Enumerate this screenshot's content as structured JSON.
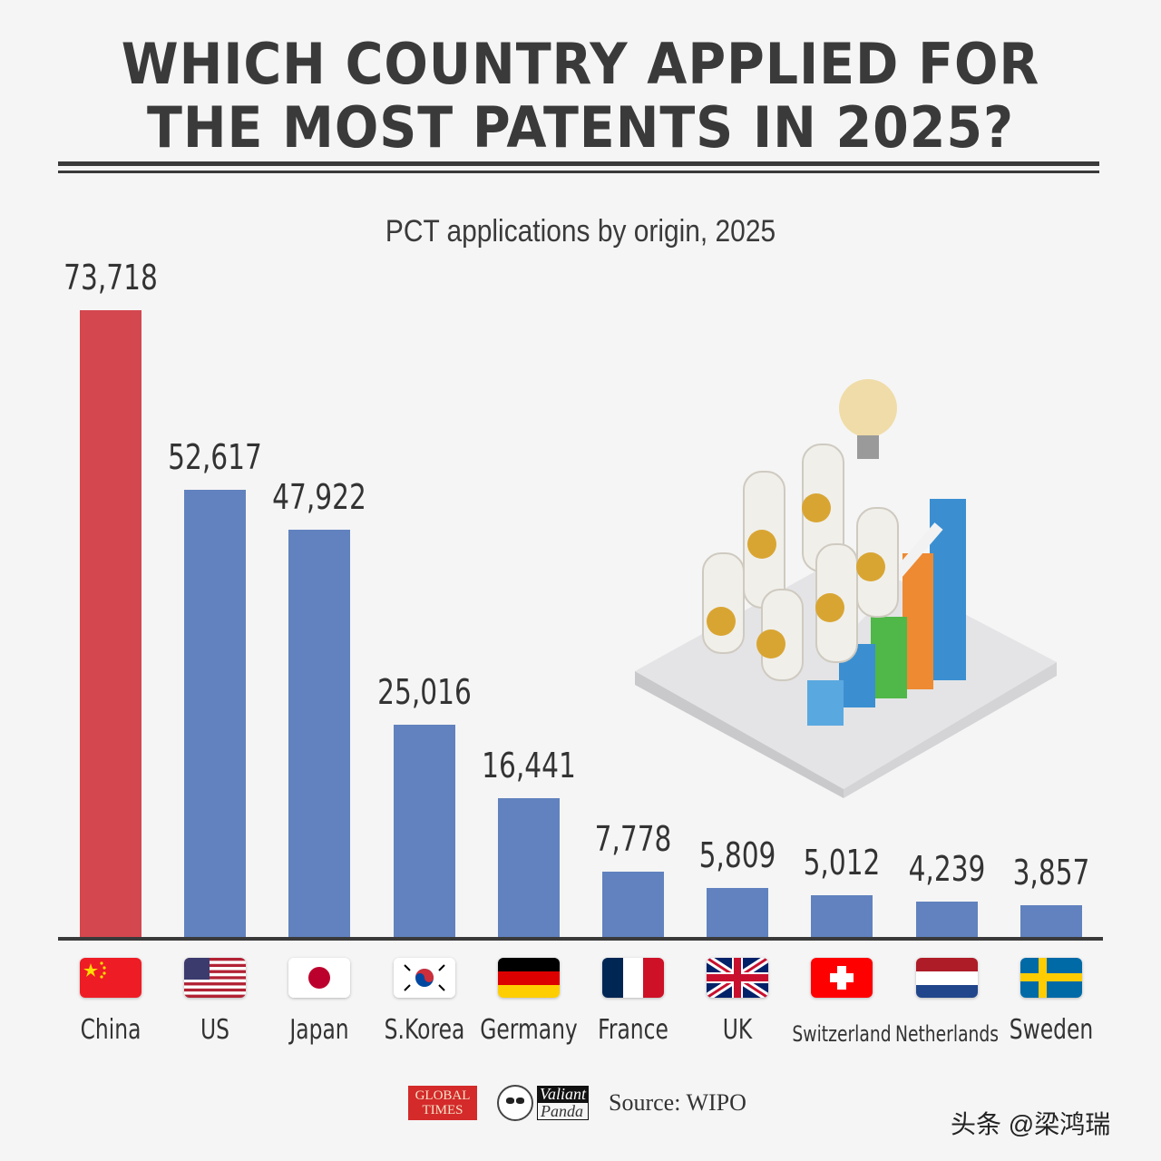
{
  "header": {
    "title_line1": "WHICH COUNTRY APPLIED FOR",
    "title_line2": "THE MOST PATENTS IN 2025?",
    "subtitle": "PCT applications by origin, 2025"
  },
  "colors": {
    "highlight_bar": "#d4474f",
    "bar": "#6182be",
    "text": "#3a3a3a",
    "background": "#f5f5f5"
  },
  "chart_data": {
    "type": "bar",
    "title": "WHICH COUNTRY APPLIED FOR THE MOST PATENTS IN 2025?",
    "subtitle": "PCT applications by origin, 2025",
    "xlabel": "",
    "ylabel": "PCT applications",
    "categories": [
      "China",
      "US",
      "Japan",
      "S.Korea",
      "Germany",
      "France",
      "UK",
      "Switzerland",
      "Netherlands",
      "Sweden"
    ],
    "values": [
      73718,
      52617,
      47922,
      25016,
      16441,
      7778,
      5809,
      5012,
      4239,
      3857
    ],
    "value_labels": [
      "73,718",
      "52,617",
      "47,922",
      "25,016",
      "16,441",
      "7,778",
      "5,809",
      "5,012",
      "4,239",
      "3,857"
    ],
    "highlight": "China",
    "grid": false,
    "legend": "none",
    "source": "Source: WIPO"
  },
  "bars": [
    {
      "country": "China",
      "label": "73,718",
      "flag": "china-flag"
    },
    {
      "country": "US",
      "label": "52,617",
      "flag": "us-flag"
    },
    {
      "country": "Japan",
      "label": "47,922",
      "flag": "japan-flag"
    },
    {
      "country": "S.Korea",
      "label": "25,016",
      "flag": "south-korea-flag"
    },
    {
      "country": "Germany",
      "label": "16,441",
      "flag": "germany-flag"
    },
    {
      "country": "France",
      "label": "7,778",
      "flag": "france-flag"
    },
    {
      "country": "UK",
      "label": "5,809",
      "flag": "uk-flag"
    },
    {
      "country": "Switzerland",
      "label": "5,012",
      "flag": "switzerland-flag"
    },
    {
      "country": "Netherlands",
      "label": "4,239",
      "flag": "netherlands-flag"
    },
    {
      "country": "Sweden",
      "label": "3,857",
      "flag": "sweden-flag"
    }
  ],
  "footer": {
    "logo1_line1": "GLOBAL",
    "logo1_line2": "TIMES",
    "logo2_line1": "Valiant",
    "logo2_line2": "Panda",
    "source": "Source: WIPO",
    "watermark": "头条 @梁鸿瑞"
  }
}
